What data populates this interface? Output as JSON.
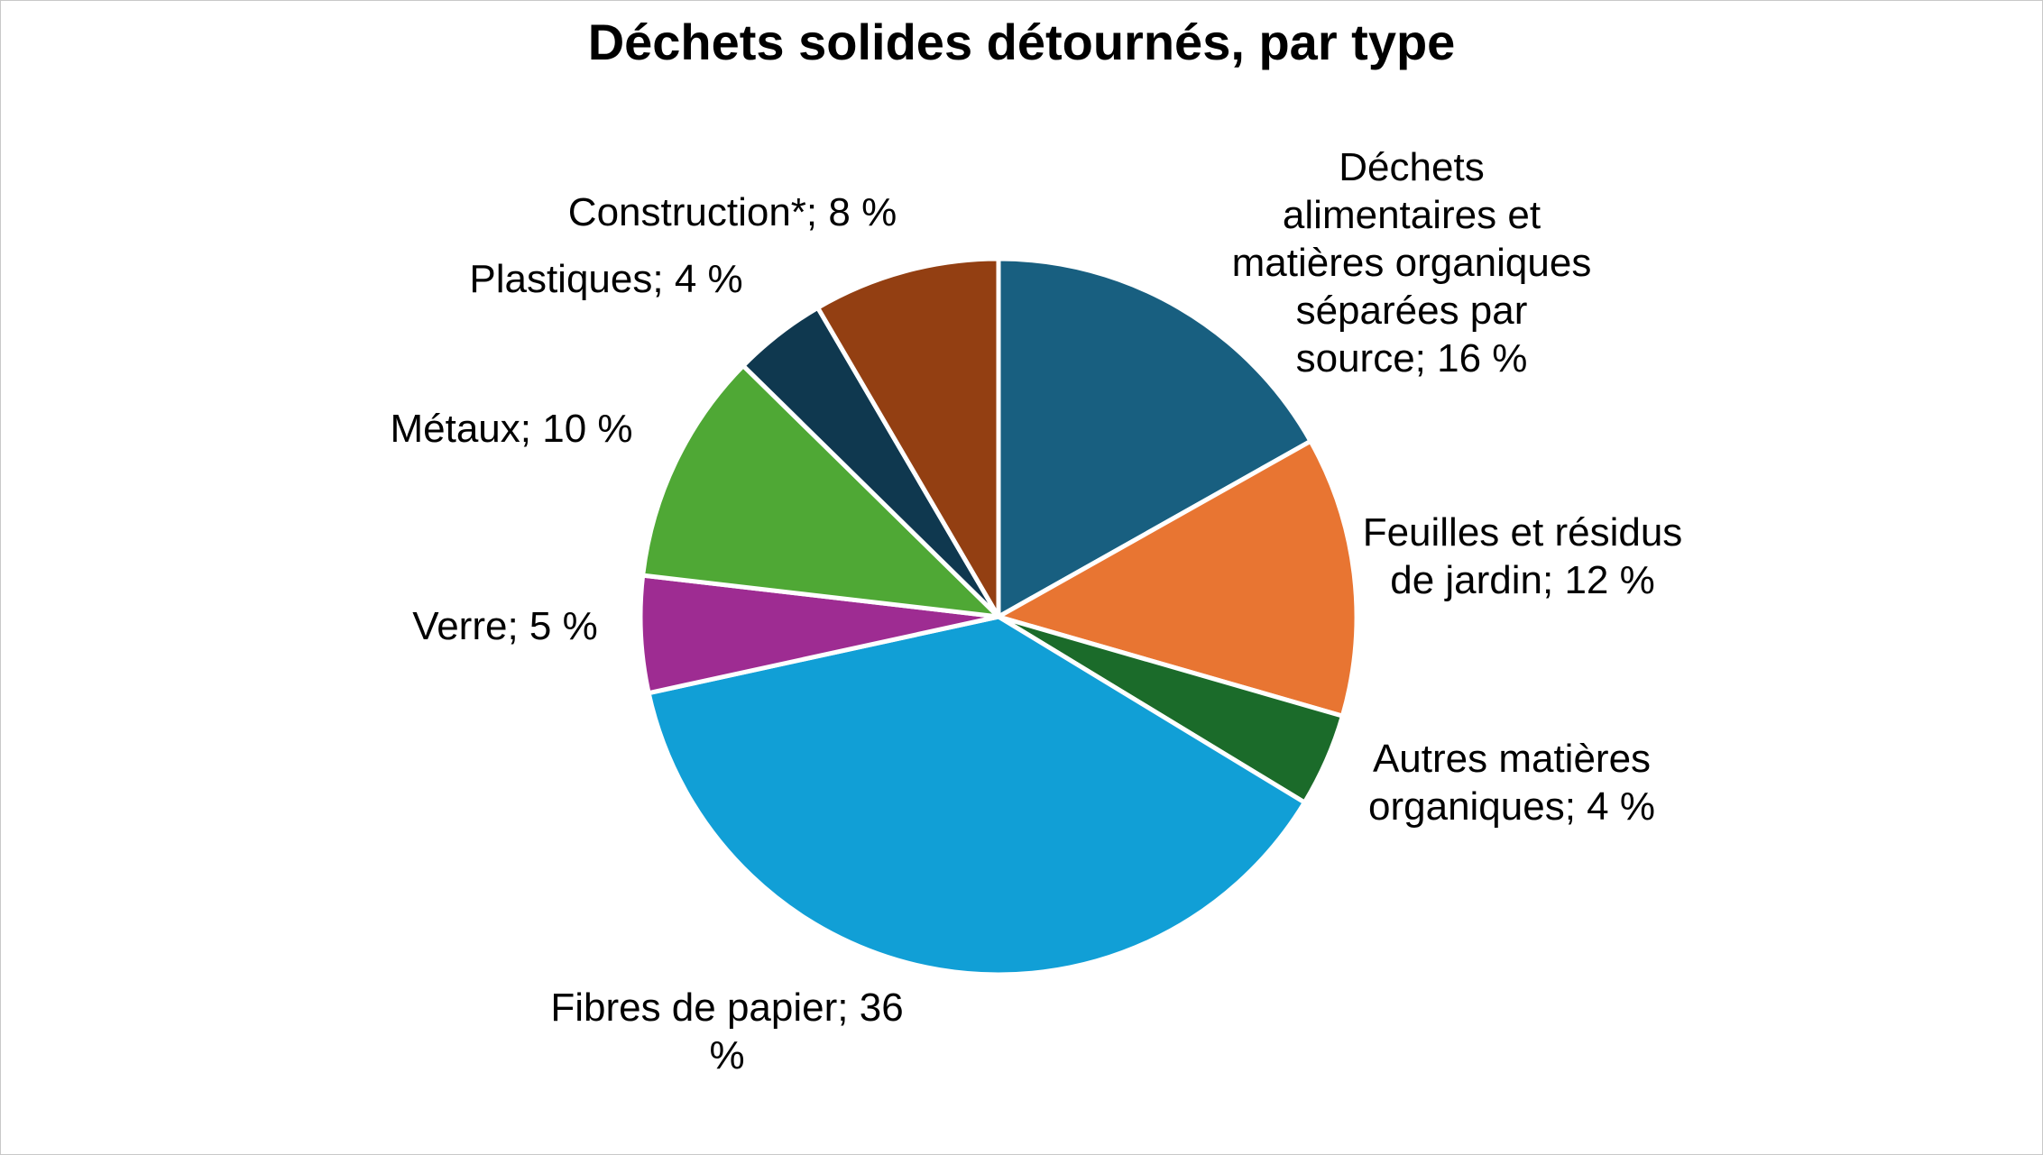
{
  "chart_data": {
    "type": "pie",
    "title": "Déchets solides détournés, par type",
    "categories": [
      "Déchets alimentaires et matières organiques séparées par source",
      "Feuilles et résidus de jardin",
      "Autres matières organiques",
      "Fibres de papier",
      "Verre",
      "Métaux",
      "Plastiques",
      "Construction*"
    ],
    "values": [
      16,
      12,
      4,
      36,
      5,
      10,
      4,
      8
    ],
    "unit": "%",
    "labels": [
      [
        "Déchets",
        "alimentaires et",
        "matières organiques",
        "séparées par",
        "source; 16 %"
      ],
      [
        "Feuilles et résidus",
        "de jardin; 12 %"
      ],
      [
        "Autres matières",
        "organiques; 4 %"
      ],
      [
        "Fibres de papier; 36",
        "%"
      ],
      [
        "Verre; 5 %"
      ],
      [
        "Métaux; 10 %"
      ],
      [
        "Plastiques; 4 %"
      ],
      [
        "Construction*; 8 %"
      ]
    ],
    "colors": [
      "#185f80",
      "#e87532",
      "#1b6b2a",
      "#119fd6",
      "#9e2c92",
      "#4fa835",
      "#0f384f",
      "#933f12"
    ],
    "start_angle_deg": 0,
    "direction": "clockwise",
    "legend": "none"
  }
}
